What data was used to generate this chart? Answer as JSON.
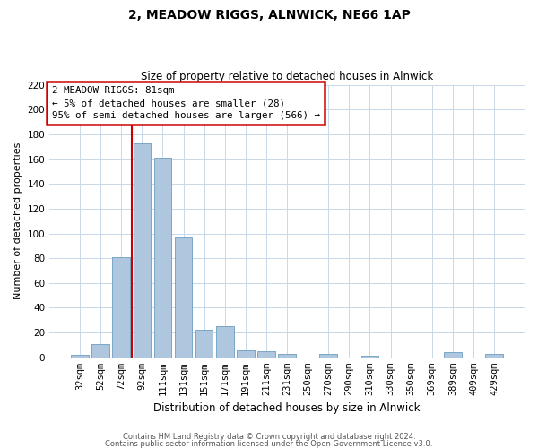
{
  "title": "2, MEADOW RIGGS, ALNWICK, NE66 1AP",
  "subtitle": "Size of property relative to detached houses in Alnwick",
  "xlabel": "Distribution of detached houses by size in Alnwick",
  "ylabel": "Number of detached properties",
  "bar_labels": [
    "32sqm",
    "52sqm",
    "72sqm",
    "92sqm",
    "111sqm",
    "131sqm",
    "151sqm",
    "171sqm",
    "191sqm",
    "211sqm",
    "231sqm",
    "250sqm",
    "270sqm",
    "290sqm",
    "310sqm",
    "330sqm",
    "350sqm",
    "369sqm",
    "389sqm",
    "409sqm",
    "429sqm"
  ],
  "bar_values": [
    2,
    11,
    81,
    173,
    161,
    97,
    22,
    25,
    6,
    5,
    3,
    0,
    3,
    0,
    1,
    0,
    0,
    0,
    4,
    0,
    3
  ],
  "bar_color": "#aec6de",
  "bar_edge_color": "#6a9ec0",
  "vline_index": 2.5,
  "vline_color": "#cc0000",
  "ylim": [
    0,
    220
  ],
  "yticks": [
    0,
    20,
    40,
    60,
    80,
    100,
    120,
    140,
    160,
    180,
    200,
    220
  ],
  "annotation_title": "2 MEADOW RIGGS: 81sqm",
  "annotation_line1": "← 5% of detached houses are smaller (28)",
  "annotation_line2": "95% of semi-detached houses are larger (566) →",
  "footer1": "Contains HM Land Registry data © Crown copyright and database right 2024.",
  "footer2": "Contains public sector information licensed under the Open Government Licence v3.0."
}
